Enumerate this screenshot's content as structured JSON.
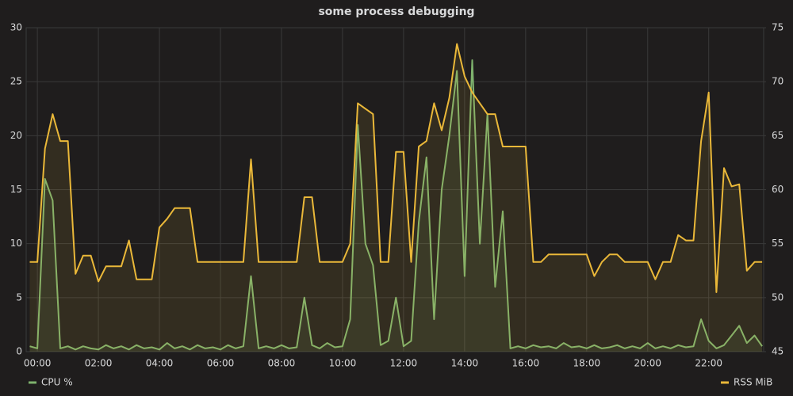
{
  "chart_data": {
    "type": "line",
    "title": "some process debugging",
    "x": [
      -15,
      0,
      15,
      30,
      45,
      60,
      75,
      90,
      105,
      120,
      135,
      150,
      165,
      180,
      195,
      210,
      225,
      240,
      255,
      270,
      285,
      300,
      315,
      330,
      345,
      360,
      375,
      390,
      405,
      420,
      435,
      450,
      465,
      480,
      495,
      510,
      525,
      540,
      555,
      570,
      585,
      600,
      615,
      630,
      645,
      660,
      675,
      690,
      705,
      720,
      735,
      750,
      765,
      780,
      795,
      810,
      825,
      840,
      855,
      870,
      885,
      900,
      915,
      930,
      945,
      960,
      975,
      990,
      1005,
      1020,
      1035,
      1050,
      1065,
      1080,
      1095,
      1110,
      1125,
      1140,
      1155,
      1170,
      1185,
      1200,
      1215,
      1230,
      1245,
      1260,
      1275,
      1290,
      1305,
      1320,
      1335,
      1350,
      1365,
      1380,
      1395,
      1410,
      1425
    ],
    "series": [
      {
        "name": "CPU %",
        "color": "#7eb26d",
        "axis": "y",
        "values": [
          0.5,
          0.3,
          16,
          14,
          0.3,
          0.5,
          0.2,
          0.5,
          0.3,
          0.2,
          0.6,
          0.3,
          0.5,
          0.2,
          0.6,
          0.3,
          0.4,
          0.2,
          0.8,
          0.3,
          0.5,
          0.2,
          0.6,
          0.3,
          0.4,
          0.2,
          0.6,
          0.3,
          0.5,
          7,
          0.3,
          0.5,
          0.3,
          0.6,
          0.3,
          0.4,
          5,
          0.6,
          0.3,
          0.8,
          0.4,
          0.5,
          3,
          21,
          10,
          8,
          0.6,
          1,
          5,
          0.5,
          1,
          12,
          18,
          3,
          15,
          20,
          26,
          7,
          27,
          10,
          22,
          6,
          13,
          0.3,
          0.5,
          0.3,
          0.6,
          0.4,
          0.5,
          0.3,
          0.8,
          0.4,
          0.5,
          0.3,
          0.6,
          0.3,
          0.4,
          0.6,
          0.3,
          0.5,
          0.3,
          0.8,
          0.3,
          0.5,
          0.3,
          0.6,
          0.4,
          0.5,
          3,
          1,
          0.3,
          0.6,
          1.5,
          2.4,
          0.8,
          1.5,
          0.5
        ]
      },
      {
        "name": "RSS MiB",
        "color": "#eab839",
        "axis": "y2",
        "values": [
          53.3,
          53.3,
          63.8,
          67,
          64.5,
          64.5,
          52.2,
          53.9,
          53.9,
          51.5,
          52.9,
          52.9,
          52.9,
          55.3,
          51.7,
          51.7,
          51.7,
          56.5,
          57.3,
          58.3,
          58.3,
          58.3,
          53.3,
          53.3,
          53.3,
          53.3,
          53.3,
          53.3,
          53.3,
          62.8,
          53.3,
          53.3,
          53.3,
          53.3,
          53.3,
          53.3,
          59.3,
          59.3,
          53.3,
          53.3,
          53.3,
          53.3,
          55,
          68,
          67.5,
          67,
          53.3,
          53.3,
          63.5,
          63.5,
          53.3,
          64,
          64.5,
          68,
          65.5,
          68.5,
          73.5,
          70.5,
          69,
          68,
          67,
          67,
          64,
          64,
          64,
          64,
          53.3,
          53.3,
          54,
          54,
          54,
          54,
          54,
          54,
          52,
          53.3,
          54,
          54,
          53.3,
          53.3,
          53.3,
          53.3,
          51.7,
          53.3,
          53.3,
          55.8,
          55.3,
          55.3,
          64.5,
          69,
          50.5,
          62,
          60.3,
          60.5,
          52.5,
          53.3,
          53.3
        ]
      }
    ],
    "xlim": [
      -22,
      1428
    ],
    "xticks": [
      {
        "value": 0,
        "label": "00:00"
      },
      {
        "value": 120,
        "label": "02:00"
      },
      {
        "value": 240,
        "label": "04:00"
      },
      {
        "value": 360,
        "label": "06:00"
      },
      {
        "value": 480,
        "label": "08:00"
      },
      {
        "value": 600,
        "label": "10:00"
      },
      {
        "value": 720,
        "label": "12:00"
      },
      {
        "value": 840,
        "label": "14:00"
      },
      {
        "value": 960,
        "label": "16:00"
      },
      {
        "value": 1080,
        "label": "18:00"
      },
      {
        "value": 1200,
        "label": "20:00"
      },
      {
        "value": 1320,
        "label": "22:00"
      }
    ],
    "ylim": [
      0,
      30
    ],
    "yticks": [
      0,
      5,
      10,
      15,
      20,
      25,
      30
    ],
    "y2lim": [
      45,
      75
    ],
    "y2ticks": [
      45,
      50,
      55,
      60,
      65,
      70,
      75
    ],
    "grid": true
  }
}
